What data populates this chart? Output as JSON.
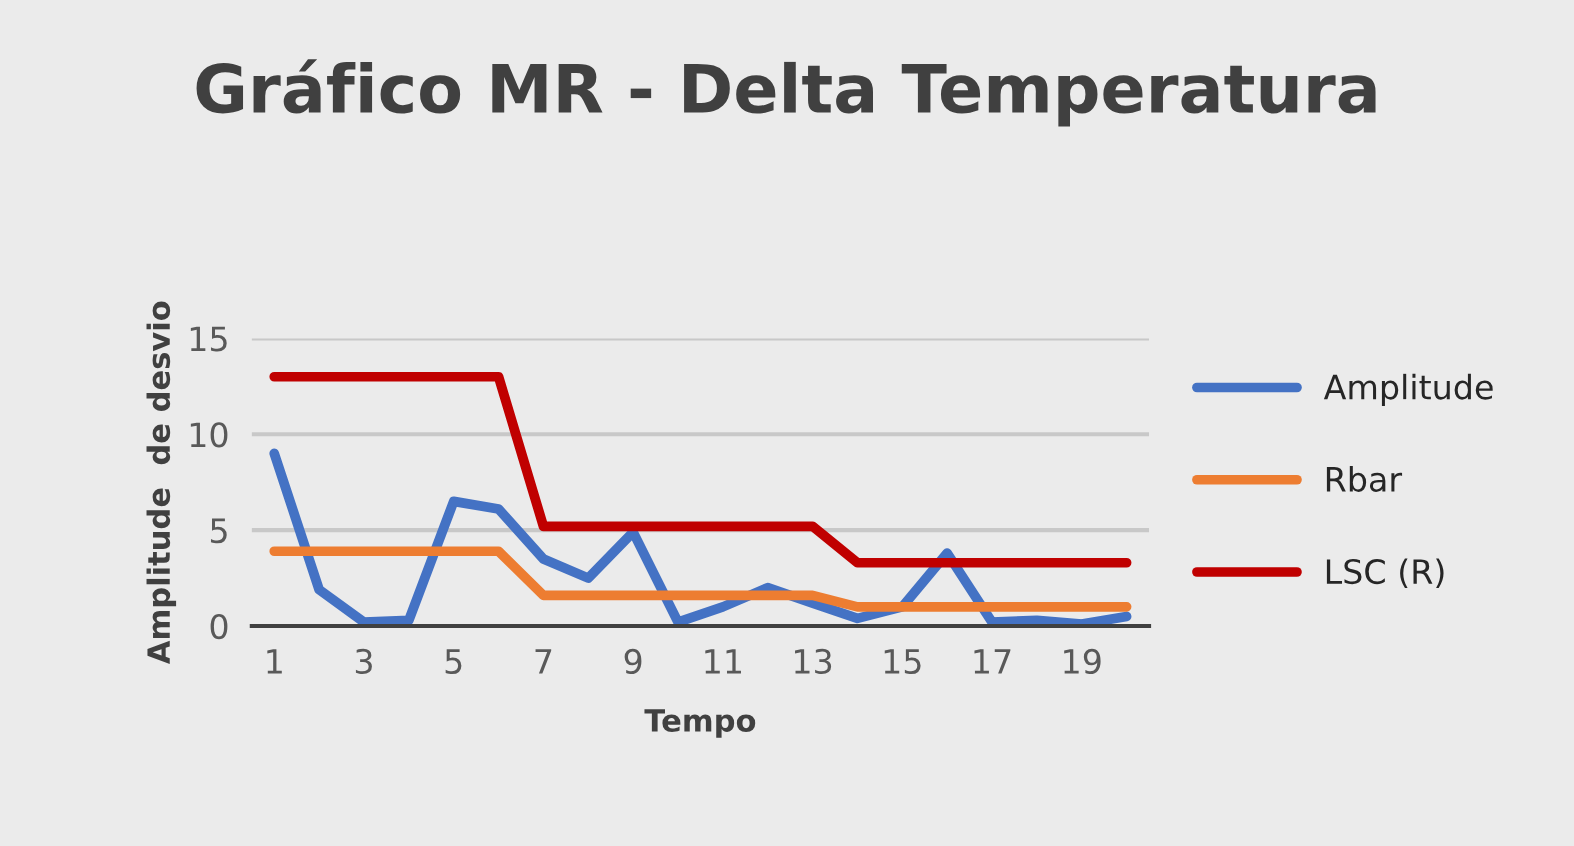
{
  "chart_data": {
    "type": "line",
    "title": "Gráfico MR - Delta Temperatura",
    "xlabel": "Tempo",
    "ylabel": "Amplitude  de desvio",
    "categories": [
      "1",
      null,
      "3",
      null,
      "5",
      null,
      "7",
      null,
      "9",
      null,
      "11",
      null,
      "13",
      null,
      "15",
      null,
      "17",
      null,
      "19",
      null
    ],
    "series": [
      {
        "name": "Amplitude",
        "color": "#4472c4",
        "values": [
          9.0,
          1.9,
          0.2,
          0.3,
          6.5,
          6.1,
          3.5,
          2.5,
          4.9,
          0.2,
          1.0,
          2.0,
          1.2,
          0.4,
          1.0,
          3.8,
          0.2,
          0.3,
          0.1,
          0.5
        ]
      },
      {
        "name": "Rbar",
        "color": "#ed7d31",
        "values": [
          3.9,
          3.9,
          3.9,
          3.9,
          3.9,
          3.9,
          1.6,
          1.6,
          1.6,
          1.6,
          1.6,
          1.6,
          1.6,
          1.0,
          1.0,
          1.0,
          1.0,
          1.0,
          1.0,
          1.0
        ]
      },
      {
        "name": "LSC (R)",
        "color": "#c00000",
        "values": [
          13,
          13,
          13,
          13,
          13,
          13,
          5.2,
          5.2,
          5.2,
          5.2,
          5.2,
          5.2,
          5.2,
          3.3,
          3.3,
          3.3,
          3.3,
          3.3,
          3.3,
          3.3
        ]
      }
    ],
    "ylim": [
      0,
      15
    ],
    "yticks": [
      0,
      5,
      10,
      15
    ],
    "grid": "y",
    "legend": "right"
  }
}
